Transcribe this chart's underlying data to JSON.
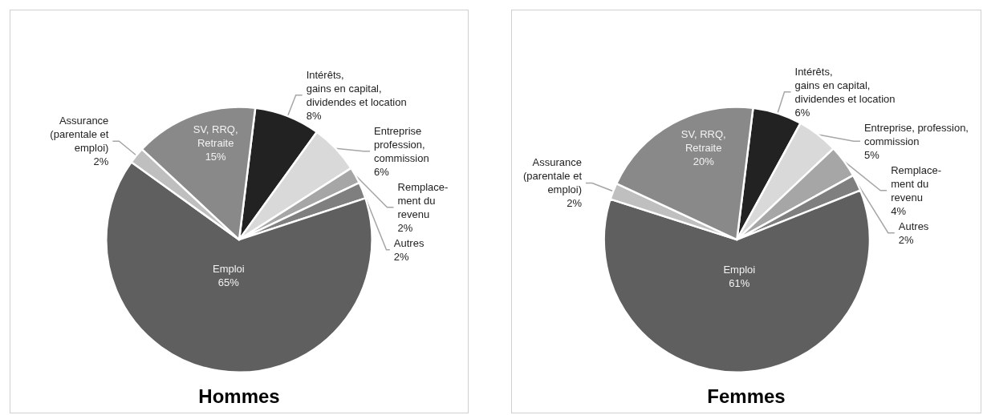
{
  "chart_data": [
    {
      "type": "pie",
      "title": "Hommes",
      "categories": [
        "Intérêts,\ngains en capital,\ndividendes et location",
        "Entreprise\nprofession,\ncommission",
        "Remplace-\nment du\nrevenu",
        "Autres",
        "Emploi",
        "Assurance\n(parentale et\nemploi)",
        "SV, RRQ,\nRetraite"
      ],
      "values": [
        8,
        6,
        2,
        2,
        65,
        2,
        15
      ],
      "value_labels": [
        "8%",
        "6%",
        "2%",
        "2%",
        "65%",
        "2%",
        "15%"
      ],
      "colors": [
        "#222222",
        "#d9d9d9",
        "#a6a6a6",
        "#7f7f7f",
        "#5f5f5f",
        "#bfbfbf",
        "#898989"
      ],
      "legend": false
    },
    {
      "type": "pie",
      "title": "Femmes",
      "categories": [
        "Intérêts,\ngains en capital,\ndividendes et location",
        "Entreprise, profession,\ncommission",
        "Remplace-\nment du\nrevenu",
        "Autres",
        "Emploi",
        "Assurance\n(parentale et\nemploi)",
        "SV, RRQ,\nRetraite"
      ],
      "values": [
        6,
        5,
        4,
        2,
        61,
        2,
        20
      ],
      "value_labels": [
        "6%",
        "5%",
        "4%",
        "2%",
        "61%",
        "2%",
        "20%"
      ],
      "colors": [
        "#222222",
        "#d9d9d9",
        "#a6a6a6",
        "#7f7f7f",
        "#5f5f5f",
        "#bfbfbf",
        "#898989"
      ],
      "legend": false
    }
  ]
}
